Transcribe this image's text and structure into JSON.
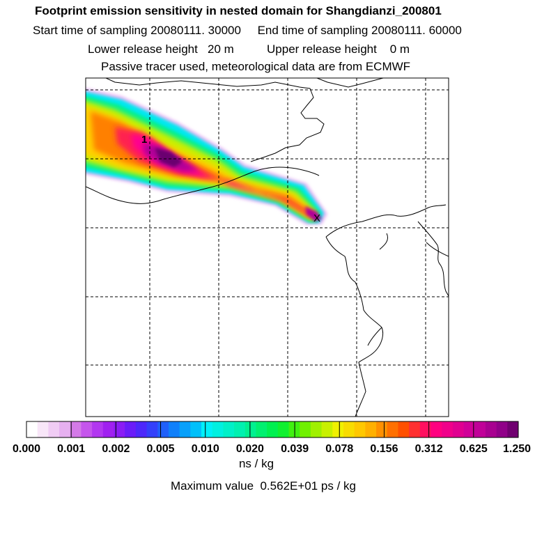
{
  "header": {
    "title": "Footprint emission sensitivity in nested domain for Shangdianzi_200801",
    "line2": "Start time of sampling 20080111. 30000     End time of sampling 20080111. 60000",
    "line3": "Lower release height   20 m          Upper release height    0 m",
    "line4": "Passive tracer used, meteorological data are from ECMWF"
  },
  "chart_data": {
    "type": "heatmap",
    "title": "Footprint emission sensitivity in nested domain for Shangdianzi_200801",
    "sampling_start": "20080111. 30000",
    "sampling_end": "20080111. 60000",
    "lower_release_height": "20 m",
    "upper_release_height": "0 m",
    "map_label": "1",
    "release_marker": "X",
    "colorbar": {
      "tick_labels": [
        "0.000",
        "0.001",
        "0.002",
        "0.005",
        "0.010",
        "0.020",
        "0.039",
        "0.078",
        "0.156",
        "0.312",
        "0.625",
        "1.250"
      ],
      "unit": "ns / kg",
      "colors": [
        "#ffffff",
        "#f8e6f8",
        "#f0ccf4",
        "#e6b0f0",
        "#d47ae8",
        "#c555ec",
        "#b237f0",
        "#a020f0",
        "#8a1cf4",
        "#6a1cf8",
        "#4d28fa",
        "#3440fa",
        "#2060fa",
        "#1080fa",
        "#08a0fa",
        "#00c0fa",
        "#00f0f8",
        "#00f0e0",
        "#00f0c8",
        "#00f0b0",
        "#00f090",
        "#00f070",
        "#00f050",
        "#10f030",
        "#40f010",
        "#70f000",
        "#a0f000",
        "#c8f000",
        "#f0f000",
        "#f8dc00",
        "#ffc800",
        "#ffb000",
        "#ff9000",
        "#ff7000",
        "#ff5000",
        "#ff3030",
        "#ff1060",
        "#ff0080",
        "#f0008a",
        "#e00090",
        "#d00098",
        "#c00098",
        "#a80090",
        "#900088",
        "#700070"
      ]
    },
    "max_value_text": "Maximum value  0.562E+01 ps / kg"
  }
}
